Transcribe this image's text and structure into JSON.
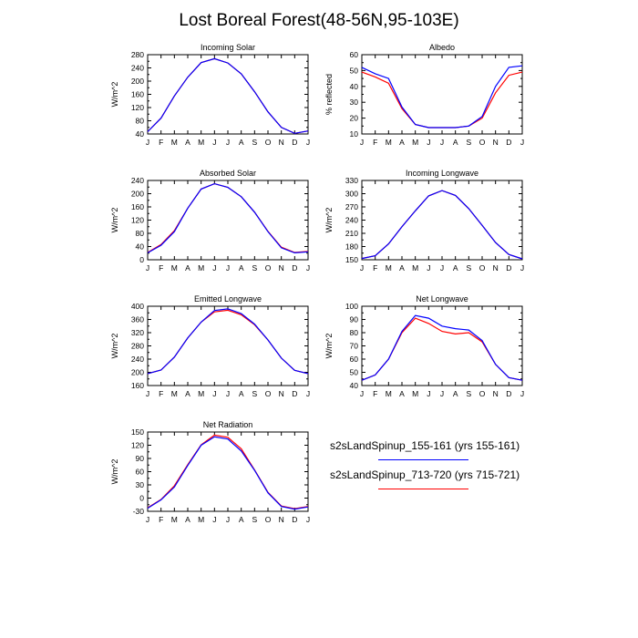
{
  "title": "Lost Boreal Forest(48-56N,95-103E)",
  "months": [
    "J",
    "F",
    "M",
    "A",
    "M",
    "J",
    "J",
    "A",
    "S",
    "O",
    "N",
    "D",
    "J"
  ],
  "legend": [
    {
      "label": "s2sLandSpinup_155-161 (yrs 155-161)",
      "color": "#0000ff"
    },
    {
      "label": "s2sLandSpinup_713-720 (yrs 715-721)",
      "color": "#ff0000"
    }
  ],
  "chart_data": [
    {
      "type": "line",
      "title": "Incoming Solar",
      "ylabel": "W/m^2",
      "ylim": [
        40,
        280
      ],
      "yticks": [
        40,
        80,
        120,
        160,
        200,
        240,
        280
      ],
      "series": [
        {
          "color": "#ff0000",
          "values": [
            47,
            88,
            155,
            212,
            256,
            268,
            255,
            222,
            168,
            107,
            60,
            42,
            49
          ]
        },
        {
          "color": "#0000ff",
          "values": [
            47,
            88,
            155,
            212,
            256,
            268,
            255,
            222,
            168,
            107,
            60,
            42,
            49
          ]
        }
      ]
    },
    {
      "type": "line",
      "title": "Albedo",
      "ylabel": "% reflected",
      "ylim": [
        10,
        60
      ],
      "yticks": [
        10,
        20,
        30,
        40,
        50,
        60
      ],
      "series": [
        {
          "color": "#ff0000",
          "values": [
            49,
            46,
            42,
            26,
            16,
            14,
            14,
            14,
            15,
            20,
            36,
            47,
            49
          ]
        },
        {
          "color": "#0000ff",
          "values": [
            52,
            48,
            45,
            27,
            16,
            14,
            14,
            14,
            15,
            21,
            40,
            52,
            53
          ]
        }
      ]
    },
    {
      "type": "line",
      "title": "Absorbed Solar",
      "ylabel": "W/m^2",
      "ylim": [
        0,
        240
      ],
      "yticks": [
        0,
        40,
        80,
        120,
        160,
        200,
        240
      ],
      "series": [
        {
          "color": "#ff0000",
          "values": [
            22,
            46,
            88,
            156,
            214,
            230,
            219,
            191,
            144,
            86,
            38,
            22,
            25
          ]
        },
        {
          "color": "#0000ff",
          "values": [
            21,
            44,
            85,
            156,
            214,
            230,
            219,
            191,
            144,
            85,
            36,
            21,
            24
          ]
        }
      ]
    },
    {
      "type": "line",
      "title": "Incoming Longwave",
      "ylabel": "W/m^2",
      "ylim": [
        150,
        330
      ],
      "yticks": [
        150,
        180,
        210,
        240,
        270,
        300,
        330
      ],
      "series": [
        {
          "color": "#ff0000",
          "values": [
            153,
            159,
            186,
            225,
            261,
            295,
            307,
            296,
            266,
            228,
            189,
            162,
            152
          ]
        },
        {
          "color": "#0000ff",
          "values": [
            153,
            159,
            186,
            225,
            261,
            295,
            307,
            296,
            266,
            228,
            189,
            162,
            152
          ]
        }
      ]
    },
    {
      "type": "line",
      "title": "Emitted Longwave",
      "ylabel": "W/m^2",
      "ylim": [
        160,
        400
      ],
      "yticks": [
        160,
        200,
        240,
        280,
        320,
        360,
        400
      ],
      "series": [
        {
          "color": "#ff0000",
          "values": [
            196,
            207,
            246,
            304,
            352,
            383,
            388,
            374,
            344,
            298,
            243,
            206,
            196
          ]
        },
        {
          "color": "#0000ff",
          "values": [
            196,
            207,
            246,
            304,
            352,
            387,
            392,
            378,
            346,
            298,
            243,
            206,
            196
          ]
        }
      ]
    },
    {
      "type": "line",
      "title": "Net Longwave",
      "ylabel": "W/m^2",
      "ylim": [
        40,
        100
      ],
      "yticks": [
        40,
        50,
        60,
        70,
        80,
        90,
        100
      ],
      "series": [
        {
          "color": "#ff0000",
          "values": [
            44,
            48,
            60,
            80,
            91,
            87,
            81,
            79,
            80,
            73,
            56,
            46,
            44
          ]
        },
        {
          "color": "#0000ff",
          "values": [
            44,
            48,
            60,
            81,
            93,
            91,
            85,
            83,
            82,
            74,
            56,
            46,
            44
          ]
        }
      ]
    },
    {
      "type": "line",
      "title": "Net Radiation",
      "ylabel": "W/m^2",
      "ylim": [
        -30,
        150
      ],
      "yticks": [
        -30,
        0,
        30,
        60,
        90,
        120,
        150
      ],
      "series": [
        {
          "color": "#ff0000",
          "values": [
            -22,
            -3,
            28,
            76,
            121,
            143,
            138,
            112,
            64,
            13,
            -18,
            -24,
            -19
          ]
        },
        {
          "color": "#0000ff",
          "values": [
            -23,
            -4,
            25,
            74,
            120,
            139,
            134,
            107,
            63,
            12,
            -19,
            -25,
            -20
          ]
        }
      ]
    }
  ]
}
